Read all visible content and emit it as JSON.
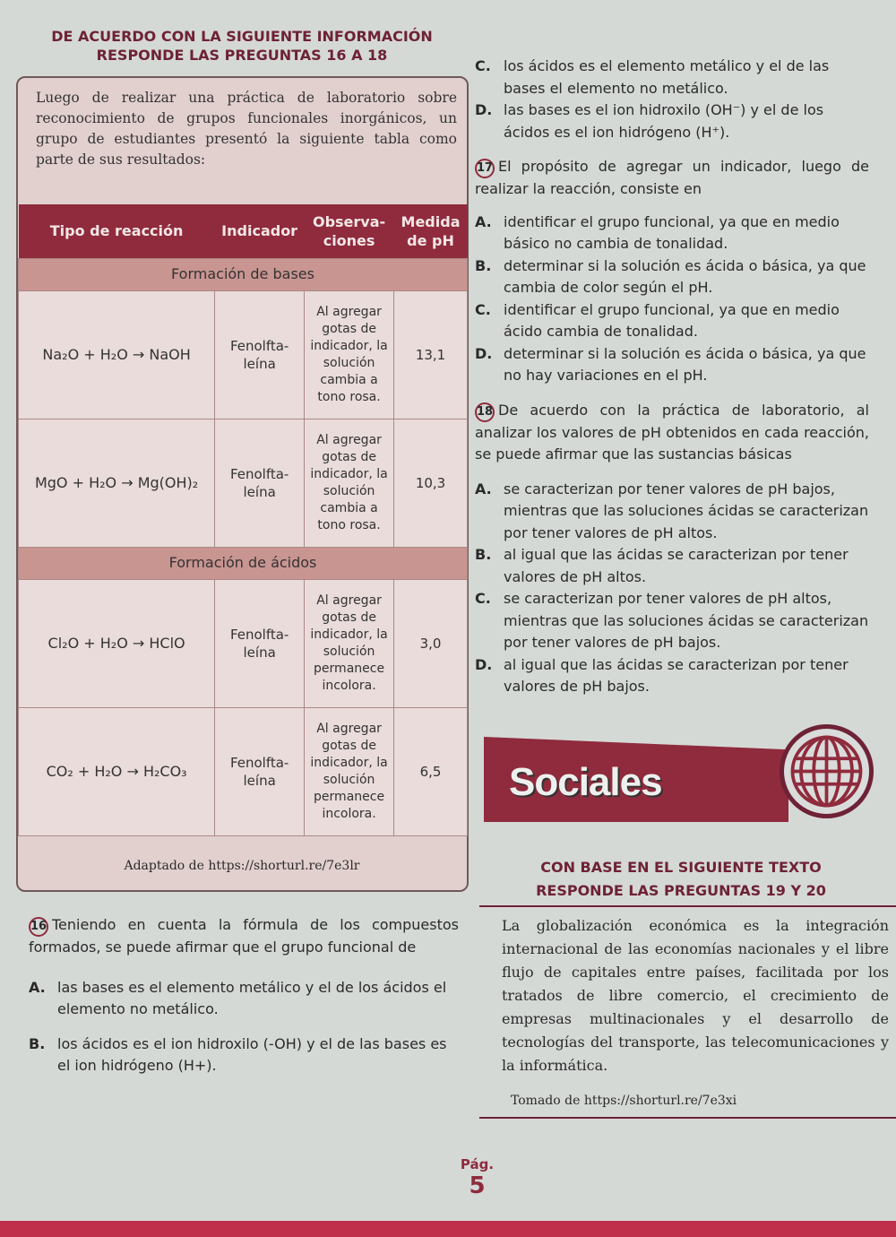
{
  "left": {
    "heading": [
      "DE ACUERDO CON LA SIGUIENTE INFORMACIÓN",
      "RESPONDE LAS PREGUNTAS 16 A 18"
    ],
    "intro": "Luego de realizar una práctica de laboratorio sobre reconocimiento de grupos funcionales inorgánicos, un grupo de estudiantes presentó la siguiente tabla como parte de sus resultados:",
    "table": {
      "headers": [
        "Tipo de reacción",
        "Indicador",
        "Observa- ciones",
        "Medida de pH"
      ],
      "sections": [
        {
          "title": "Formación de bases",
          "rows": [
            {
              "reaction": "Na₂O + H₂O → NaOH",
              "indicator": "Fenolfta- leína",
              "observation": "Al agregar gotas de indicador, la solución cambia a tono rosa.",
              "ph": "13,1"
            },
            {
              "reaction": "MgO + H₂O → Mg(OH)₂",
              "indicator": "Fenolfta- leína",
              "observation": "Al agregar gotas de indicador, la solución cambia a tono rosa.",
              "ph": "10,3"
            }
          ]
        },
        {
          "title": "Formación de ácidos",
          "rows": [
            {
              "reaction": "Cl₂O + H₂O → HClO",
              "indicator": "Fenolfta- leína",
              "observation": "Al agregar gotas de indicador, la solución permanece incolora.",
              "ph": "3,0"
            },
            {
              "reaction": "CO₂ + H₂O → H₂CO₃",
              "indicator": "Fenolfta- leína",
              "observation": "Al agregar gotas de indicador, la solución permanece incolora.",
              "ph": "6,5"
            }
          ]
        }
      ]
    },
    "source": "Adaptado de https://shorturl.re/7e3lr",
    "q16": {
      "number": "16",
      "text": "Teniendo en cuenta la fórmula de los compuestos formados, se puede afirmar que el grupo funcional de",
      "options": [
        {
          "letter": "A.",
          "text": "las bases es el elemento metálico y el de los ácidos el elemento no metálico."
        },
        {
          "letter": "B.",
          "text": "los ácidos es el ion hidroxilo (-OH) y el de las bases es el ion hidrógeno (H+)."
        }
      ]
    }
  },
  "right": {
    "q16_cont": [
      {
        "letter": "C.",
        "text": "los ácidos es el elemento metálico y el de las bases el elemento no metálico."
      },
      {
        "letter": "D.",
        "text": "las bases es el ion hidroxilo (OH⁻) y el de los ácidos es el ion hidrógeno (H⁺)."
      }
    ],
    "q17": {
      "number": "17",
      "text": "El propósito de agregar un indicador, luego de realizar la reacción, consiste en",
      "options": [
        {
          "letter": "A.",
          "text": "identificar el grupo funcional, ya que en medio básico no cambia de tonalidad."
        },
        {
          "letter": "B.",
          "text": "determinar si la solución es ácida o básica, ya que cambia de color según el pH."
        },
        {
          "letter": "C.",
          "text": "identificar el grupo funcional, ya que en medio ácido cambia de tonalidad."
        },
        {
          "letter": "D.",
          "text": "determinar si la solución es ácida o básica, ya que no hay variaciones en el pH."
        }
      ]
    },
    "q18": {
      "number": "18",
      "text": "De acuerdo con la práctica de laboratorio, al analizar los valores de pH obtenidos en cada reacción, se puede afirmar que las sustancias básicas",
      "options": [
        {
          "letter": "A.",
          "text": "se caracterizan por tener valores de pH bajos, mientras que las soluciones ácidas se caracterizan por tener valores de pH altos."
        },
        {
          "letter": "B.",
          "text": "al igual que las ácidas se caracterizan por tener valores de pH altos."
        },
        {
          "letter": "C.",
          "text": "se caracterizan por tener valores de pH altos, mientras que las soluciones ácidas se caracterizan por tener valores de pH bajos."
        },
        {
          "letter": "D.",
          "text": "al igual que las ácidas se caracterizan por tener valores de pH bajos."
        }
      ]
    },
    "banner": "Sociales",
    "banner_icon": "globe-icon",
    "heading": [
      "CON BASE EN EL SIGUIENTE TEXTO",
      "RESPONDE LAS PREGUNTAS 19 Y 20"
    ],
    "quote": "La globalización económica es la integración internacional de las economías nacionales y el libre flujo de capitales entre países, facilitada por los tratados de libre comercio, el crecimiento de empresas multinacionales y el desarrollo de tecnologías del transporte, las telecomunicaciones y la informática.",
    "quote_source": "Tomado de https://shorturl.re/7e3xi"
  },
  "page": {
    "label": "Pág.",
    "number": "5"
  },
  "colors": {
    "accent": "#8f2b3d",
    "section": "#c99591",
    "background": "#d5d9d6"
  }
}
